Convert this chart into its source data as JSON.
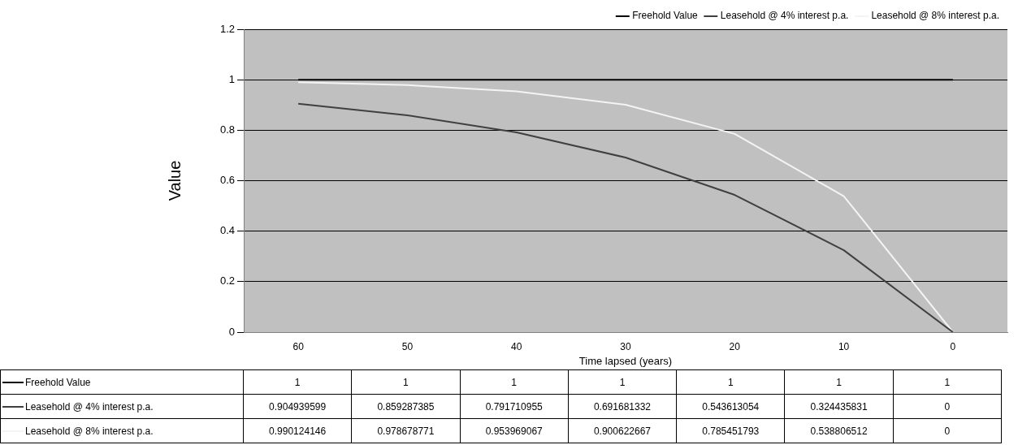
{
  "chart_data": {
    "type": "line",
    "xlabel": "Time lapsed (years)",
    "ylabel": "Value",
    "categories": [
      "60",
      "50",
      "40",
      "30",
      "20",
      "10",
      "0"
    ],
    "series": [
      {
        "name": "Freehold Value",
        "color": "#000000",
        "values": [
          1,
          1,
          1,
          1,
          1,
          1,
          1
        ]
      },
      {
        "name": "Leasehold @ 4% interest p.a.",
        "color": "#404040",
        "values": [
          0.904939599,
          0.859287385,
          0.791710955,
          0.691681332,
          0.543613054,
          0.324435831,
          0
        ]
      },
      {
        "name": "Leasehold @ 8% interest p.a.",
        "color": "#f4f4f4",
        "values": [
          0.990124146,
          0.978678771,
          0.953969067,
          0.900622667,
          0.785451793,
          0.538806512,
          0
        ]
      }
    ],
    "ylim": [
      0,
      1.2
    ],
    "yticks": [
      0,
      0.2,
      0.4,
      0.6,
      0.8,
      1,
      1.2
    ],
    "grid": "y",
    "legend": "top right",
    "marker": "none",
    "line_style": "solid",
    "data_labels": true
  }
}
